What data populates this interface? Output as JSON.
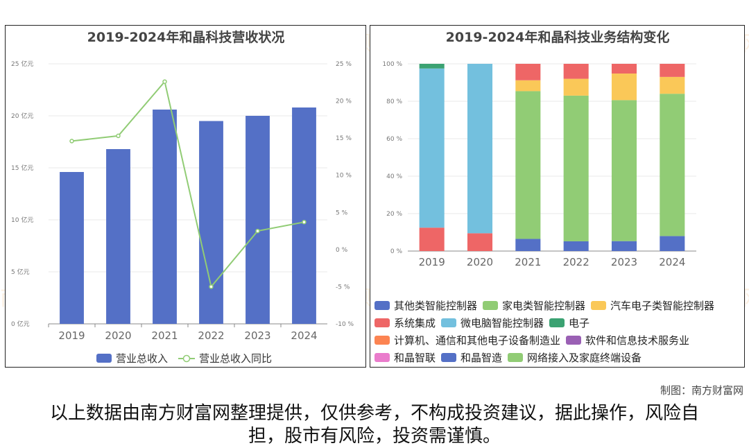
{
  "watermark": "南方财富网",
  "chart_data": [
    {
      "type": "bar+line",
      "title": "2019-2024年和晶科技营收状况",
      "categories": [
        "2019",
        "2020",
        "2021",
        "2022",
        "2023",
        "2024"
      ],
      "series": [
        {
          "name": "营业总收入",
          "kind": "bar",
          "axis": "left",
          "color": "#5470c6",
          "values": [
            14.6,
            16.8,
            20.6,
            19.5,
            20.0,
            20.8
          ]
        },
        {
          "name": "营业总收入同比",
          "kind": "line",
          "axis": "right",
          "color": "#91cc75",
          "values": [
            14.6,
            15.3,
            22.6,
            -5.0,
            2.5,
            3.7
          ]
        }
      ],
      "left_axis": {
        "min": 0,
        "max": 25,
        "step": 5,
        "tick_labels": [
          "0 亿元",
          "5 亿元",
          "10 亿元",
          "15 亿元",
          "20 亿元",
          "25 亿元"
        ]
      },
      "right_axis": {
        "min": -10,
        "max": 25,
        "step": 5,
        "tick_labels": [
          "-10 %",
          "-5 %",
          "0 %",
          "5 %",
          "10 %",
          "15 %",
          "20 %",
          "25 %"
        ]
      },
      "legend": [
        "营业总收入",
        "营业总收入同比"
      ],
      "legend_position": "bottom"
    },
    {
      "type": "stacked-bar",
      "title": "2019-2024年和晶科技业务结构变化",
      "categories": [
        "2019",
        "2020",
        "2021",
        "2022",
        "2023",
        "2024"
      ],
      "y_axis": {
        "min": 0,
        "max": 100,
        "step": 20,
        "tick_labels": [
          "0 %",
          "20 %",
          "40 %",
          "60 %",
          "80 %",
          "100 %"
        ]
      },
      "series": [
        {
          "name": "其他类智能控制器",
          "color": "#5470c6",
          "values": [
            0,
            0,
            6.5,
            5.2,
            5.3,
            8.0
          ]
        },
        {
          "name": "家电类智能控制器",
          "color": "#91cc75",
          "values": [
            0,
            0,
            78.9,
            77.8,
            75.3,
            76.0
          ]
        },
        {
          "name": "汽车电子类智能控制器",
          "color": "#fac858",
          "values": [
            0,
            0,
            5.8,
            9.0,
            14.2,
            9.0
          ]
        },
        {
          "name": "系统集成",
          "color": "#ee6666",
          "values": [
            12.5,
            9.5,
            8.8,
            8.0,
            5.2,
            7.0
          ]
        },
        {
          "name": "微电脑智能控制器",
          "color": "#73c0de",
          "values": [
            85.0,
            90.5,
            0,
            0,
            0,
            0
          ]
        },
        {
          "name": "电子",
          "color": "#3ba272",
          "values": [
            2.5,
            0,
            0,
            0,
            0,
            0
          ]
        },
        {
          "name": "计算机、通信和其他电子设备制造业",
          "color": "#fc8452",
          "values": [
            0,
            0,
            0,
            0,
            0,
            0
          ]
        },
        {
          "name": "软件和信息技术服务业",
          "color": "#9a60b4",
          "values": [
            0,
            0,
            0,
            0,
            0,
            0
          ]
        },
        {
          "name": "和晶智联",
          "color": "#ea7ccc",
          "values": [
            0,
            0,
            0,
            0,
            0,
            0
          ]
        },
        {
          "name": "和晶智造",
          "color": "#5470c6",
          "values": [
            0,
            0,
            0,
            0,
            0,
            0
          ]
        },
        {
          "name": "网络接入及家庭终端设备",
          "color": "#91cc75",
          "values": [
            0,
            0,
            0,
            0,
            0,
            0
          ]
        }
      ],
      "legend_rows": [
        [
          0,
          1,
          2
        ],
        [
          3,
          4,
          5
        ],
        [
          6,
          7
        ],
        [
          8,
          9,
          10
        ]
      ],
      "legend_position": "bottom"
    }
  ],
  "footer": {
    "credit": "制图：南方财富网",
    "disclaimer": "以上数据由南方财富网整理提供，仅供参考，不构成投资建议，据此操作，风险自担，股市有风险，投资需谨慎。"
  }
}
